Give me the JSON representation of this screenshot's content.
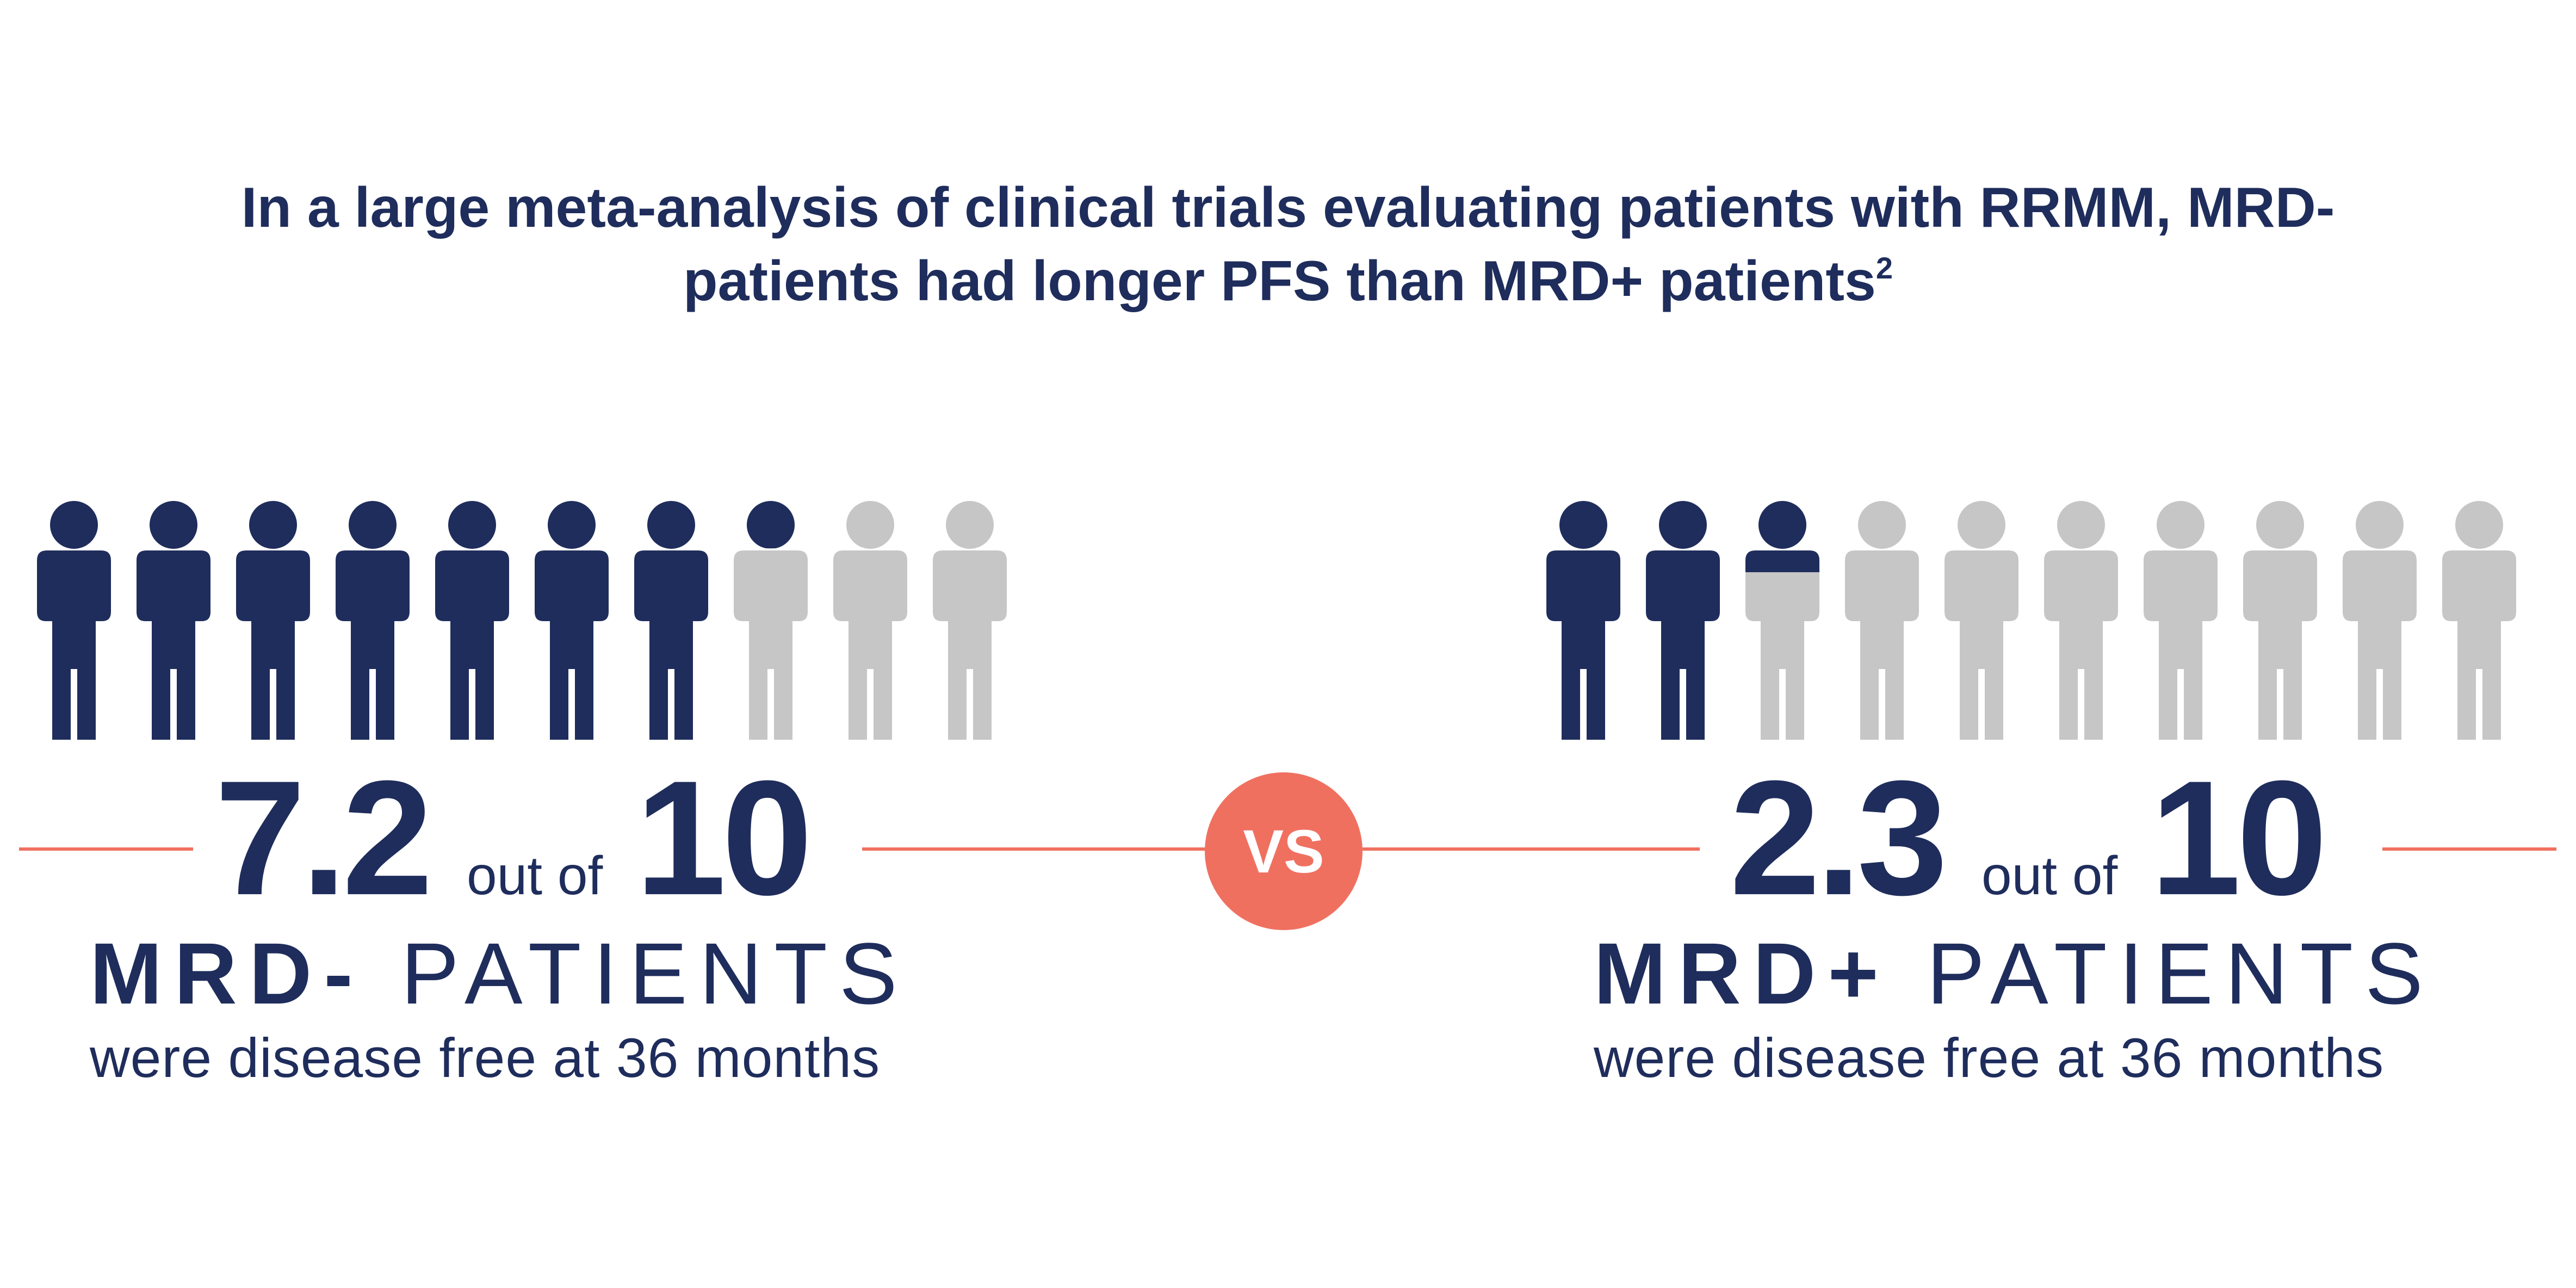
{
  "headline": {
    "line1": "In a large meta-analysis of clinical trials evaluating patients with RRMM, MRD-",
    "line2": "patients had longer PFS than MRD+ patients",
    "superscript": "2"
  },
  "vs_label": "VS",
  "colors": {
    "navy": "#1f2d5c",
    "gray": "#c6c6c6",
    "accent": "#f07060"
  },
  "chart_data": {
    "type": "pictograph",
    "total": 10,
    "groups": [
      {
        "value_text": "7.2",
        "value": 7.2,
        "out_of_text": "out of",
        "total_text": "10",
        "label_bold": "MRD-",
        "label_rest": "PATIENTS",
        "caption": "were disease free at 36 months"
      },
      {
        "value_text": "2.3",
        "value": 2.3,
        "out_of_text": "out of",
        "total_text": "10",
        "label_bold": "MRD+",
        "label_rest": "PATIENTS",
        "caption": "were disease free at 36 months"
      }
    ]
  }
}
